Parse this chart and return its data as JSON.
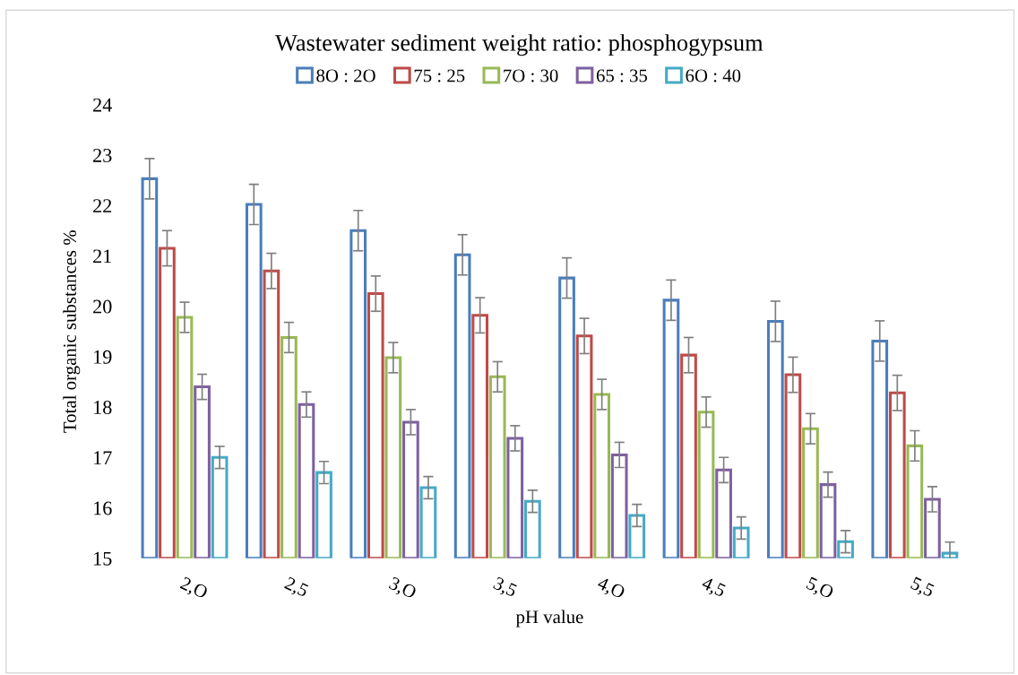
{
  "chart_data": {
    "type": "bar",
    "title": "Wastewater sediment weight ratio: phosphogypsum",
    "xlabel": "pH value",
    "ylabel": "Total organic substances %",
    "categories": [
      "2,O",
      "2,5",
      "3,O",
      "3,5",
      "4,O",
      "4,5",
      "5,O",
      "5,5"
    ],
    "series": [
      {
        "name": "8O : 2O",
        "color": "#4a7ebb",
        "values": [
          22.53,
          22.02,
          21.5,
          21.02,
          20.56,
          20.12,
          19.7,
          19.31
        ],
        "errors": [
          0.4,
          0.4,
          0.4,
          0.4,
          0.4,
          0.4,
          0.4,
          0.4
        ]
      },
      {
        "name": "75 : 25",
        "color": "#be4b48",
        "values": [
          21.15,
          20.7,
          20.25,
          19.82,
          19.41,
          19.03,
          18.64,
          18.28
        ],
        "errors": [
          0.35,
          0.35,
          0.35,
          0.35,
          0.35,
          0.35,
          0.35,
          0.35
        ]
      },
      {
        "name": "7O : 30",
        "color": "#98b954",
        "values": [
          19.78,
          19.38,
          18.98,
          18.6,
          18.25,
          17.9,
          17.57,
          17.23
        ],
        "errors": [
          0.3,
          0.3,
          0.3,
          0.3,
          0.3,
          0.3,
          0.3,
          0.3
        ]
      },
      {
        "name": "65 : 35",
        "color": "#7d60a0",
        "values": [
          18.4,
          18.05,
          17.7,
          17.38,
          17.05,
          16.75,
          16.46,
          16.17
        ],
        "errors": [
          0.25,
          0.25,
          0.25,
          0.25,
          0.25,
          0.25,
          0.25,
          0.25
        ]
      },
      {
        "name": "6O : 40",
        "color": "#46aac5",
        "values": [
          17.0,
          16.7,
          16.4,
          16.13,
          15.85,
          15.6,
          15.33,
          15.1
        ],
        "errors": [
          0.22,
          0.22,
          0.22,
          0.22,
          0.22,
          0.22,
          0.22,
          0.22
        ]
      }
    ],
    "ylim": [
      15,
      24
    ],
    "yticks": [
      15,
      16,
      17,
      18,
      19,
      20,
      21,
      22,
      23,
      24
    ],
    "grid": false,
    "legend": "top"
  }
}
